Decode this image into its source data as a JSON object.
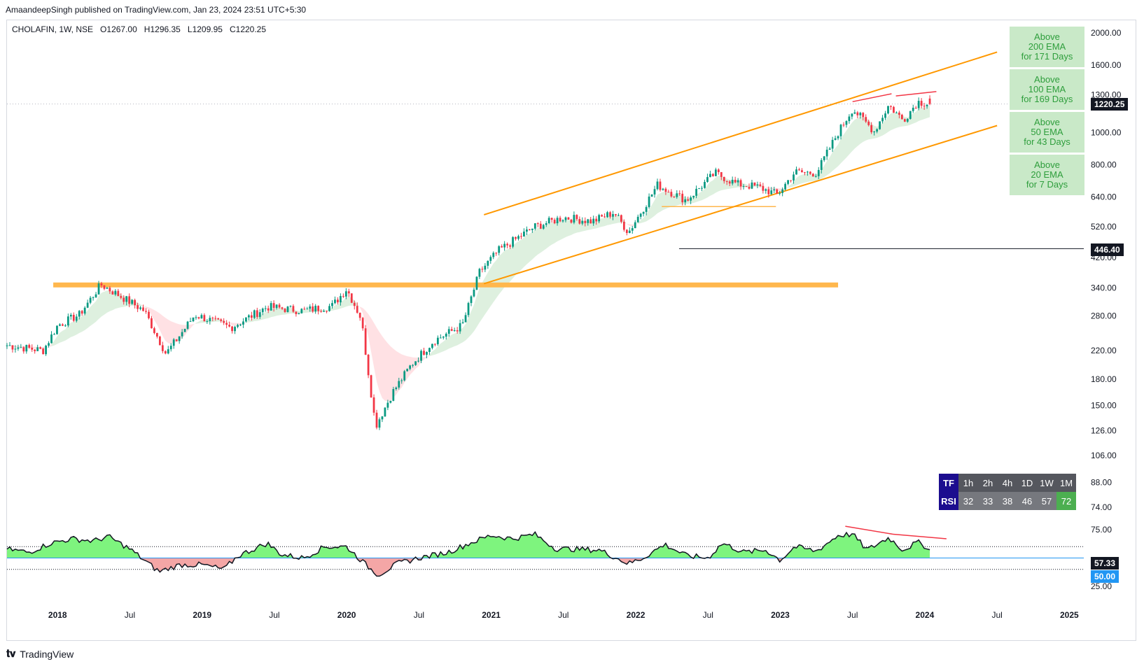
{
  "header": {
    "publish": "AmaandeepSingh published on TradingView.com, Jan 23, 2024 23:51 UTC+5:30",
    "symbol": "CHOLAFIN, 1W, NSE",
    "open_label": "O",
    "open": "1267.00",
    "high_label": "H",
    "high": "1296.35",
    "low_label": "L",
    "low": "1209.95",
    "close_label": "C",
    "close": "1220.25"
  },
  "footer": {
    "brand": "TradingView",
    "logo": "tradingview-logo-icon"
  },
  "ema_boxes": [
    {
      "line1": "Above",
      "line2": "200 EMA",
      "line3": "for 171 Days"
    },
    {
      "line1": "Above",
      "line2": "100 EMA",
      "line3": "for 169 Days"
    },
    {
      "line1": "Above",
      "line2": "50 EMA",
      "line3": "for 43 Days"
    },
    {
      "line1": "Above",
      "line2": "20 EMA",
      "line3": "for 7 Days"
    }
  ],
  "rsi_table": {
    "tf_label": "TF",
    "rsi_label": "RSI",
    "timeframes": [
      "1h",
      "2h",
      "4h",
      "1D",
      "1W",
      "1M"
    ],
    "values": [
      "32",
      "33",
      "38",
      "46",
      "57",
      "72"
    ]
  },
  "price_tags": {
    "last": "1220.25",
    "level": "446.40",
    "rsi_value": "57.33",
    "rsi_mid": "50.00"
  },
  "colors": {
    "up": "#089981",
    "down": "#f23645",
    "channel": "#ff9800",
    "support": "#ffb74d",
    "ema_fill": "#c8e6c9",
    "ema_fill_down": "#ffcdd2",
    "rsi_up": "#7ef47e",
    "rsi_down": "#f4a6a6"
  },
  "chart_data": [
    {
      "type": "candlestick",
      "title": "CHOLAFIN, 1W, NSE",
      "y_scale": "log",
      "y_ticks": [
        2000.0,
        1600.0,
        1300.0,
        1000.0,
        800.0,
        640.0,
        520.0,
        420.0,
        340.0,
        280.0,
        220.0,
        180.0,
        150.0,
        126.0,
        106.0,
        88.0,
        74.0
      ],
      "x_tick_labels": [
        "2018",
        "Jul",
        "2019",
        "Jul",
        "2020",
        "Jul",
        "2021",
        "Jul",
        "2022",
        "Jul",
        "2023",
        "Jul",
        "2024",
        "Jul",
        "2025"
      ],
      "x_range": [
        2017.65,
        2025.1
      ],
      "price_series_keypoints": {
        "x": [
          2017.65,
          2017.9,
          2018.0,
          2018.15,
          2018.3,
          2018.45,
          2018.6,
          2018.75,
          2018.95,
          2019.2,
          2019.45,
          2019.7,
          2019.9,
          2020.0,
          2020.1,
          2020.2,
          2020.32,
          2020.45,
          2020.6,
          2020.8,
          2020.92,
          2021.05,
          2021.3,
          2021.5,
          2021.7,
          2021.85,
          2021.95,
          2022.15,
          2022.35,
          2022.55,
          2022.7,
          2022.85,
          2022.98,
          2023.1,
          2023.25,
          2023.4,
          2023.5,
          2023.65,
          2023.75,
          2023.85,
          2023.95,
          2024.05
        ],
        "close": [
          228,
          220,
          262,
          282,
          348,
          318,
          290,
          215,
          282,
          258,
          298,
          290,
          300,
          338,
          275,
          130,
          165,
          200,
          235,
          262,
          380,
          440,
          520,
          555,
          540,
          575,
          500,
          695,
          625,
          755,
          700,
          685,
          650,
          760,
          755,
          1000,
          1180,
          1010,
          1210,
          1090,
          1240,
          1220.25
        ]
      },
      "annotations": {
        "horizontal_resistance": 347,
        "horizontal_support": 598,
        "level_line": 446.4,
        "last_price": 1220.25
      },
      "ohlc_last": {
        "open": 1267.0,
        "high": 1296.35,
        "low": 1209.95,
        "close": 1220.25
      }
    },
    {
      "type": "line",
      "title": "RSI",
      "y_ticks": [
        75.0,
        25.0
      ],
      "levels": {
        "upper": 60,
        "mid": 50,
        "lower": 40
      },
      "last_value": 57.33,
      "mid_value": 50.0,
      "series_keypoints": {
        "x": [
          2017.65,
          2017.8,
          2017.95,
          2018.1,
          2018.25,
          2018.35,
          2018.5,
          2018.7,
          2018.85,
          2019.0,
          2019.15,
          2019.25,
          2019.45,
          2019.55,
          2019.7,
          2019.85,
          2020.0,
          2020.15,
          2020.22,
          2020.35,
          2020.5,
          2020.7,
          2020.85,
          2021.0,
          2021.15,
          2021.3,
          2021.45,
          2021.55,
          2021.75,
          2021.95,
          2022.05,
          2022.2,
          2022.35,
          2022.5,
          2022.6,
          2022.75,
          2022.9,
          2023.0,
          2023.1,
          2023.25,
          2023.4,
          2023.5,
          2023.6,
          2023.75,
          2023.85,
          2023.95,
          2024.05
        ],
        "values": [
          58,
          55,
          63,
          67,
          65,
          69,
          58,
          38,
          44,
          44,
          40,
          52,
          63,
          53,
          50,
          60,
          60,
          42,
          35,
          45,
          50,
          55,
          63,
          70,
          67,
          71,
          58,
          58,
          57,
          45,
          50,
          62,
          52,
          50,
          63,
          55,
          57,
          48,
          60,
          56,
          70,
          71,
          57,
          68,
          57,
          64,
          57.33
        ]
      }
    }
  ]
}
